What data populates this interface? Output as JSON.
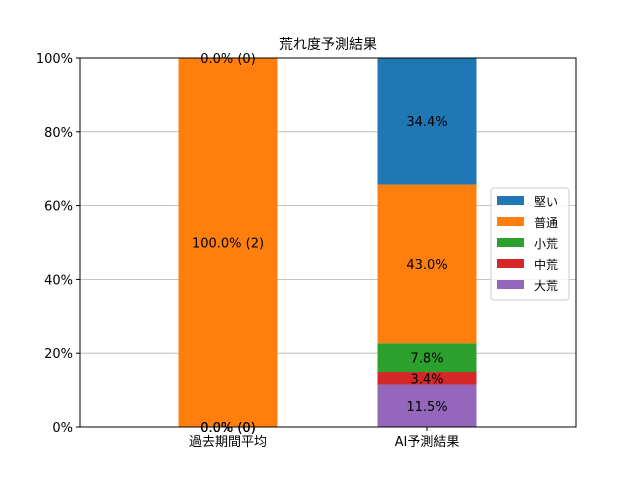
{
  "chart_data": {
    "type": "bar",
    "stacked": true,
    "title": "荒れ度予測結果",
    "xlabel": "",
    "ylabel": "",
    "categories": [
      "過去期間平均",
      "AI予測結果"
    ],
    "ylim": [
      0,
      100
    ],
    "yticks": [
      {
        "value": 0,
        "label": "0%"
      },
      {
        "value": 20,
        "label": "20%"
      },
      {
        "value": 40,
        "label": "40%"
      },
      {
        "value": 60,
        "label": "60%"
      },
      {
        "value": 80,
        "label": "80%"
      },
      {
        "value": 100,
        "label": "100%"
      }
    ],
    "grid": "horizontal",
    "legend_position": "right",
    "series": [
      {
        "name": "大荒",
        "color": "#9467bd",
        "values": [
          0.0,
          11.5
        ],
        "labels": [
          "0.0% (0)",
          "11.5%"
        ]
      },
      {
        "name": "中荒",
        "color": "#d62728",
        "values": [
          0.0,
          3.4
        ],
        "labels": [
          "0.0% (0)",
          "3.4%"
        ]
      },
      {
        "name": "小荒",
        "color": "#2ca02c",
        "values": [
          0.0,
          7.8
        ],
        "labels": [
          "0.0% (0)",
          "7.8%"
        ]
      },
      {
        "name": "普通",
        "color": "#ff7f0e",
        "values": [
          100.0,
          43.0
        ],
        "labels": [
          "100.0% (2)",
          "43.0%"
        ]
      },
      {
        "name": "堅い",
        "color": "#1f77b4",
        "values": [
          0.0,
          34.4
        ],
        "labels": [
          "0.0% (0)",
          "34.4%"
        ]
      }
    ],
    "legend_order": [
      "堅い",
      "普通",
      "小荒",
      "中荒",
      "大荒"
    ]
  }
}
